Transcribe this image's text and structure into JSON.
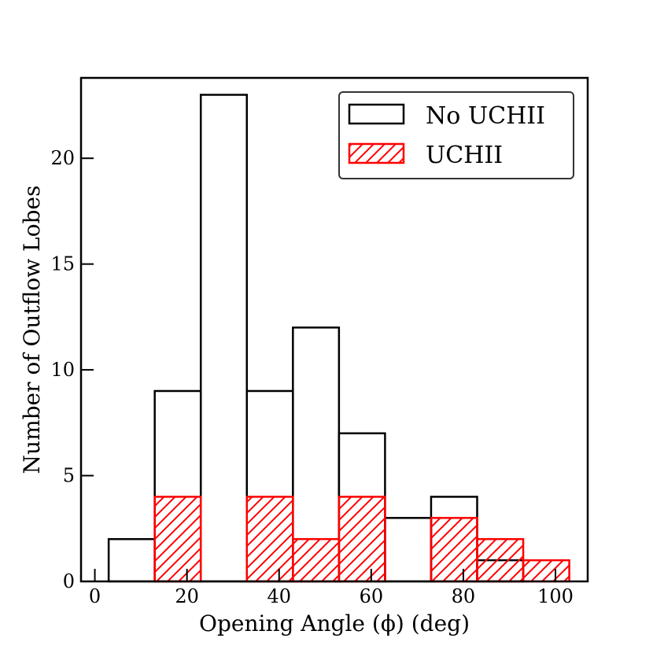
{
  "chart_data": {
    "type": "bar",
    "xlabel": "Opening Angle (ϕ) (deg)",
    "ylabel": "Number of Outflow Lobes",
    "xlim": [
      -3,
      107
    ],
    "ylim": [
      0,
      23.8
    ],
    "xticks": [
      0,
      20,
      40,
      60,
      80,
      100
    ],
    "yticks": [
      0,
      5,
      10,
      15,
      20
    ],
    "bin_edges": [
      3,
      13,
      23,
      33,
      43,
      53,
      63,
      73,
      83,
      93,
      103
    ],
    "legend_position": "top-right",
    "grid": false,
    "series": [
      {
        "name": "No UCHII",
        "values": [
          2,
          9,
          23,
          9,
          12,
          7,
          3,
          4,
          1,
          0
        ],
        "style": "outline",
        "color": "#000000"
      },
      {
        "name": "UCHII",
        "values": [
          0,
          4,
          0,
          4,
          2,
          4,
          0,
          3,
          2,
          1
        ],
        "style": "hatched",
        "color": "#ff0000"
      }
    ]
  }
}
